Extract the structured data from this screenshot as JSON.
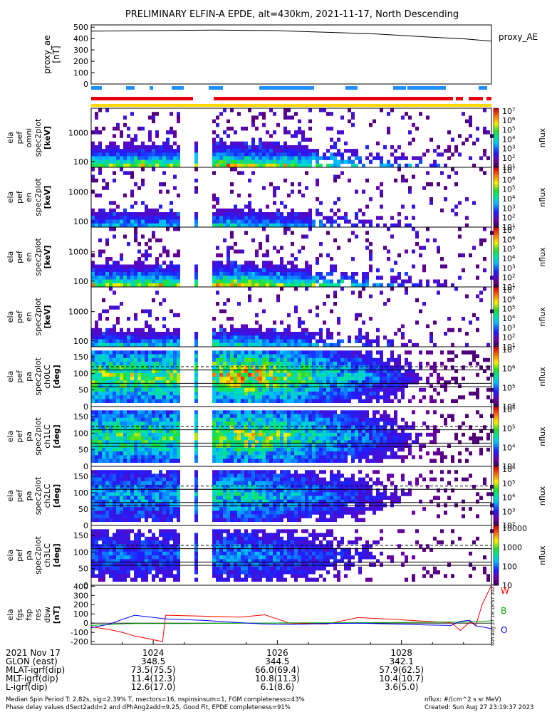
{
  "title": "PRELIMINARY ELFIN-A EPDE, alt=430km, 2021-11-17, North Descending",
  "colors": {
    "red_bar": "#e8000b",
    "blue_bar": "#1e90ff",
    "yellow_bar": "#ffd800",
    "W": "#ff0000",
    "B": "#00aa00",
    "O": "#0000ff",
    "reference_lines": "#000000"
  },
  "chart_data": [
    {
      "type": "line",
      "id": "proxy_ae",
      "ylabel": [
        "proxy_ae",
        "[nT]"
      ],
      "legend": "proxy_AE",
      "ylim": [
        0,
        520
      ],
      "yticks": [
        0,
        100,
        200,
        300,
        400,
        500
      ],
      "x": [
        "10:23.0",
        "10:23.6",
        "10:24.0",
        "10:24.4",
        "10:25.0",
        "10:25.6",
        "10:26.0",
        "10:26.4",
        "10:27.0",
        "10:27.6",
        "10:28.0",
        "10:28.4",
        "10:29.0",
        "10:29.45"
      ],
      "series": [
        {
          "values": [
            465,
            468,
            470,
            472,
            474,
            472,
            470,
            462,
            452,
            440,
            428,
            414,
            398,
            378
          ]
        }
      ]
    },
    {
      "type": "heatmap",
      "id": "spec_omni",
      "ylabel": [
        "ela",
        "pef",
        "omni",
        "spec2plot",
        "[keV]"
      ],
      "yscale": "log",
      "ylim": [
        63,
        7000
      ],
      "yticks": [
        100,
        1000
      ],
      "colorbar": {
        "label": "nflux",
        "scale": "log",
        "ticks": [
          "10^1",
          "10^2",
          "10^3",
          "10^4",
          "10^5",
          "10^6",
          "10^7"
        ]
      }
    },
    {
      "type": "heatmap",
      "id": "spec_para",
      "ylabel": [
        "ela",
        "pef",
        "en",
        "spec2plot",
        "[keV]"
      ],
      "yscale": "log",
      "ylim": [
        63,
        7000
      ],
      "yticks": [
        100,
        1000
      ],
      "colorbar": {
        "label": "nflux",
        "scale": "log",
        "ticks": [
          "10^1",
          "10^2",
          "10^3",
          "10^4",
          "10^5",
          "10^6",
          "10^7"
        ]
      }
    },
    {
      "type": "heatmap",
      "id": "spec_perp",
      "ylabel": [
        "ela",
        "pef",
        "en",
        "spec2plot",
        "[keV]"
      ],
      "yscale": "log",
      "ylim": [
        63,
        7000
      ],
      "yticks": [
        100,
        1000
      ],
      "colorbar": {
        "label": "nflux",
        "scale": "log",
        "ticks": [
          "10^1",
          "10^2",
          "10^3",
          "10^4",
          "10^5",
          "10^6",
          "10^7"
        ]
      }
    },
    {
      "type": "heatmap",
      "id": "spec_anti",
      "ylabel": [
        "ela",
        "pef",
        "en",
        "spec2plot",
        "[keV]"
      ],
      "yscale": "log",
      "ylim": [
        63,
        7000
      ],
      "yticks": [
        100,
        1000
      ],
      "colorbar": {
        "label": "nflux",
        "scale": "log",
        "ticks": [
          "10^1",
          "10^2",
          "10^3",
          "10^4",
          "10^5",
          "10^6",
          "10^7"
        ]
      }
    },
    {
      "type": "heatmap",
      "id": "pa_ch0",
      "ylabel": [
        "ela",
        "pef",
        "pa",
        "spec2plot",
        "ch0LC",
        "[deg]"
      ],
      "ylim": [
        0,
        180
      ],
      "yticks": [
        0,
        50,
        100,
        150
      ],
      "reference_lines": {
        "solid": [
          60,
          70,
          110
        ],
        "dashed": [
          120
        ]
      },
      "colorbar": {
        "label": "nflux",
        "scale": "log",
        "ticks": [
          "10^4",
          "10^5",
          "10^6",
          "10^7"
        ]
      }
    },
    {
      "type": "heatmap",
      "id": "pa_ch1",
      "ylabel": [
        "ela",
        "pef",
        "pa",
        "spec2plot",
        "ch1LC",
        "[deg]"
      ],
      "ylim": [
        0,
        180
      ],
      "yticks": [
        0,
        50,
        100,
        150
      ],
      "reference_lines": {
        "solid": [
          60,
          70,
          110
        ],
        "dashed": [
          120
        ]
      },
      "colorbar": {
        "label": "nflux",
        "scale": "log",
        "ticks": [
          "10^3",
          "10^4",
          "10^5",
          "10^6"
        ]
      }
    },
    {
      "type": "heatmap",
      "id": "pa_ch2",
      "ylabel": [
        "ela",
        "pef",
        "pa",
        "spec2plot",
        "ch2LC",
        "[deg]"
      ],
      "ylim": [
        0,
        180
      ],
      "yticks": [
        0,
        50,
        100,
        150
      ],
      "reference_lines": {
        "solid": [
          60,
          70,
          110
        ],
        "dashed": [
          120
        ]
      },
      "colorbar": {
        "label": "nflux",
        "scale": "log",
        "ticks": [
          "10^2",
          "10^3",
          "10^4",
          "10^5",
          "10^6"
        ]
      }
    },
    {
      "type": "heatmap",
      "id": "pa_ch3",
      "ylabel": [
        "ela",
        "pef",
        "pa",
        "spec2plot",
        "ch3LC",
        "[deg]"
      ],
      "ylim": [
        0,
        180
      ],
      "yticks": [
        0,
        50,
        100,
        150
      ],
      "reference_lines": {
        "solid": [
          60,
          70,
          110
        ],
        "dashed": [
          120
        ]
      },
      "colorbar": {
        "label": "nflux",
        "scale": "log",
        "ticks": [
          "10",
          "100",
          "1000",
          "10000"
        ]
      }
    },
    {
      "type": "line",
      "id": "fgs_res",
      "ylabel": [
        "ela",
        "fgs",
        "fsp",
        "res",
        "dbw",
        "[nT]"
      ],
      "ylim": [
        -230,
        410
      ],
      "yticks": [
        -200,
        -100,
        0,
        100,
        200,
        300,
        400
      ],
      "x": [
        "10:23.0",
        "10:23.3",
        "10:23.5",
        "10:23.7",
        "10:23.9",
        "10:24.15",
        "10:24.2",
        "10:24.8",
        "10:25.4",
        "10:25.8",
        "10:26.2",
        "10:26.8",
        "10:27.3",
        "10:27.9",
        "10:28.4",
        "10:28.8",
        "10:28.95",
        "10:29.1",
        "10:29.2",
        "10:29.3",
        "10:29.45"
      ],
      "series": [
        {
          "name": "W",
          "values": [
            -40,
            -70,
            -100,
            -140,
            -165,
            -200,
            85,
            75,
            65,
            90,
            0,
            -10,
            60,
            40,
            20,
            5,
            -80,
            10,
            -20,
            200,
            410
          ]
        },
        {
          "name": "B",
          "values": [
            -25,
            -15,
            -8,
            -5,
            -5,
            -5,
            -5,
            -3,
            0,
            0,
            3,
            3,
            5,
            8,
            10,
            12,
            10,
            15,
            18,
            20,
            25
          ]
        },
        {
          "name": "O",
          "values": [
            -50,
            -10,
            40,
            85,
            70,
            50,
            45,
            30,
            5,
            -10,
            -15,
            -5,
            0,
            -10,
            -20,
            -25,
            20,
            30,
            -30,
            -40,
            -60
          ]
        }
      ]
    }
  ],
  "time_axis": {
    "ticks": [
      "1024",
      "1026",
      "1028"
    ],
    "date_label": "2021 Nov 17"
  },
  "orbit_table": {
    "rows": [
      {
        "label": "GLON (east)",
        "values": [
          "348.5",
          "344.5",
          "342.1"
        ]
      },
      {
        "label": "MLAT-igrf(dip)",
        "values": [
          "73.5(75.5)",
          "66.0(69.4)",
          "57.9(62.5)"
        ]
      },
      {
        "label": "MLT-igrf(dip)",
        "values": [
          "11.4(12.3)",
          "10.8(11.3)",
          "10.4(10.7)"
        ]
      },
      {
        "label": "L-igrf(dip)",
        "values": [
          "12.6(17.0)",
          "6.1(8.6)",
          "3.6(5.0)"
        ]
      }
    ]
  },
  "footer": {
    "line1": "Median Spin Period T: 2.82s, sig=2.39% T, nsectors=16, nspinsinsum=1, FGM completeness=43%",
    "line2": "Phase delay values dSect2add=2 and dPhAng2add=9.25, Good Fit, EPDE completeness=91%",
    "right1": "nflux: #/(cm^2 s sr MeV)",
    "right2": "Created: Sun Aug 27 23:19:37 2023"
  },
  "side_stamp": "Sun Aug 27 16:18:57 2023"
}
